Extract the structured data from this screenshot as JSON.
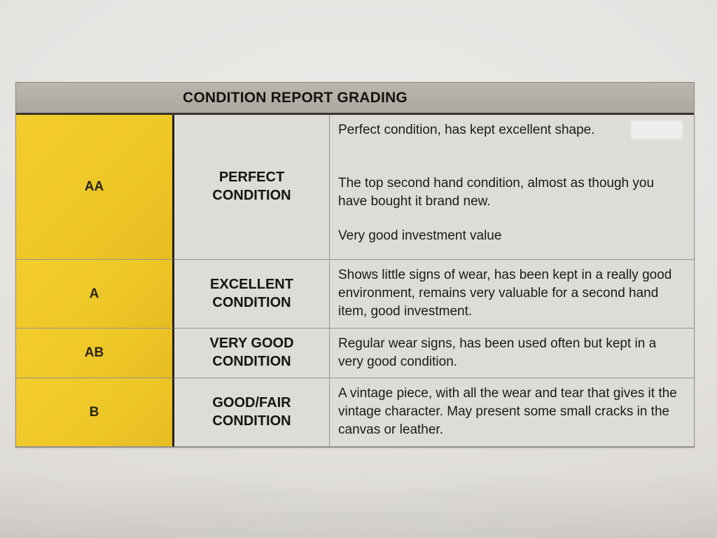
{
  "document": {
    "kind": "printed-condition-grading-table-photo",
    "colors": {
      "paper": "#e6e4e1",
      "header_gray": "#b2aea6",
      "grade_yellow": "#eec728",
      "cell_gray": "#dedcd9",
      "text": "#1b1a18",
      "thick_divider": "#23201b",
      "thin_line": "#97938b"
    }
  },
  "table": {
    "title": "CONDITION REPORT GRADING",
    "rows": [
      {
        "grade": "AA",
        "label": "PERFECT\nCONDITION",
        "desc_parts": [
          "Perfect condition, has kept excellent shape.",
          "The top second hand condition, almost as though you have bought it brand new.",
          "Very good investment value"
        ]
      },
      {
        "grade": "A",
        "label": "EXCELLENT\nCONDITION",
        "desc": "Shows little signs of wear, has been kept in a really good environment, remains very valuable for a second hand item, good investment."
      },
      {
        "grade": "AB",
        "label": "VERY GOOD\nCONDITION",
        "desc": "Regular wear signs, has been used often but kept in a very good condition."
      },
      {
        "grade": "B",
        "label": "GOOD/FAIR\nCONDITION",
        "desc": "A vintage piece, with all the wear and tear that gives it the vintage character. May present some small cracks in the canvas or leather."
      }
    ]
  }
}
